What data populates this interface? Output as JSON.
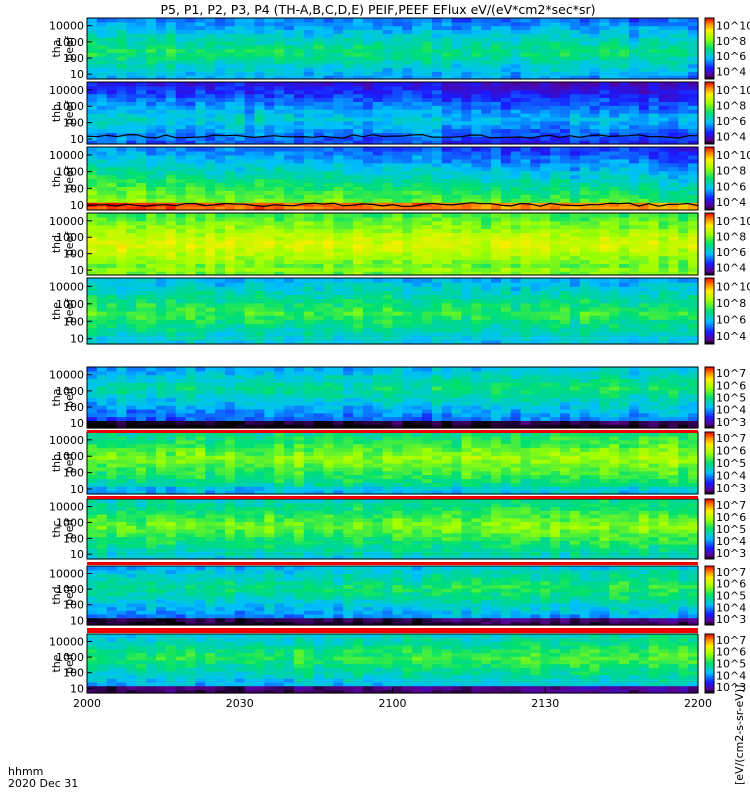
{
  "title": "P5, P1, P2, P3, P4 (TH-A,B,C,D,E) PEIF,PEEF EFlux eV/(eV*cm2*sec*sr)",
  "footer": {
    "time_label": "hhmm",
    "date_label": "2020 Dec 31"
  },
  "colorbar_unit_label": "[eV/(cm2-s-sr-eV)]",
  "colors": {
    "panel_border": "#000000",
    "band_red": "#ee0000",
    "trace": "#000000"
  },
  "chart_data": {
    "type": "heatmap",
    "xlabel": "",
    "x_ticks": [
      "2000",
      "2030",
      "2100",
      "2130",
      "2200"
    ],
    "x_range_hhmm": [
      "2000",
      "2200"
    ],
    "y_scale": "log",
    "y_ticks": [
      "10",
      "100",
      "1000",
      "10000"
    ],
    "y_range_eV": [
      5,
      30000
    ],
    "colormap": "rainbow (purple-blue-cyan-green-yellow-red)",
    "panels": [
      {
        "probe": "tha",
        "product": "peef",
        "label_probe": "tha",
        "label_product": "peef",
        "colorbar_ticks": [
          "10^4",
          "10^6",
          "10^8",
          "10^10"
        ],
        "spectrum": {
          "base": 0.52,
          "peak_log_e": 2.4,
          "hot_level": 0.0,
          "slope": -0.04
        },
        "trace_level": null
      },
      {
        "probe": "thb",
        "product": "peef",
        "label_probe": "thb",
        "label_product": "peef",
        "colorbar_ticks": [
          "10^4",
          "10^6",
          "10^8",
          "10^10"
        ],
        "spectrum": {
          "base": 0.44,
          "peak_log_e": 2.2,
          "hot_level": 0.0,
          "slope": -0.08
        },
        "trace_level": 15
      },
      {
        "probe": "thc",
        "product": "peef",
        "label_probe": "thc",
        "label_product": "peef",
        "colorbar_ticks": [
          "10^4",
          "10^6",
          "10^8",
          "10^10"
        ],
        "spectrum": {
          "base": 0.62,
          "peak_log_e": 1.3,
          "hot_level": 0.35,
          "slope": -0.1
        },
        "trace_level": 11
      },
      {
        "probe": "thd",
        "product": "peef",
        "label_probe": "thd",
        "label_product": "peef",
        "colorbar_ticks": [
          "10^4",
          "10^6",
          "10^8",
          "10^10"
        ],
        "spectrum": {
          "base": 0.72,
          "peak_log_e": 2.6,
          "hot_level": 0.05,
          "slope": -0.03
        },
        "trace_level": null
      },
      {
        "probe": "the",
        "product": "peef",
        "label_probe": "the",
        "label_product": "peef",
        "colorbar_ticks": [
          "10^4",
          "10^6",
          "10^8",
          "10^10"
        ],
        "spectrum": {
          "base": 0.55,
          "peak_log_e": 2.5,
          "hot_level": 0.0,
          "slope": -0.02
        },
        "trace_level": null
      },
      {
        "probe": "tha",
        "product": "peif",
        "label_probe": "tha",
        "label_product": "peif",
        "colorbar_ticks": [
          "10^3",
          "10^4",
          "10^5",
          "10^6",
          "10^7"
        ],
        "spectrum": {
          "base": 0.46,
          "peak_log_e": 3.2,
          "hot_level": 0.0,
          "slope": 0.05
        },
        "trace_level": null
      },
      {
        "probe": "thb",
        "product": "peif",
        "label_probe": "thb",
        "label_product": "peif",
        "colorbar_ticks": [
          "10^3",
          "10^4",
          "10^5",
          "10^6",
          "10^7"
        ],
        "spectrum": {
          "base": 0.6,
          "peak_log_e": 2.9,
          "hot_level": 0.2,
          "slope": 0.04
        },
        "trace_level": null
      },
      {
        "probe": "thc",
        "product": "peif",
        "label_probe": "thc",
        "label_product": "peif",
        "colorbar_ticks": [
          "10^3",
          "10^4",
          "10^5",
          "10^6",
          "10^7"
        ],
        "spectrum": {
          "base": 0.58,
          "peak_log_e": 2.8,
          "hot_level": 0.25,
          "slope": 0.04
        },
        "trace_level": null
      },
      {
        "probe": "thd",
        "product": "peif",
        "label_probe": "thd",
        "label_product": "peif",
        "colorbar_ticks": [
          "10^3",
          "10^4",
          "10^5",
          "10^6",
          "10^7"
        ],
        "spectrum": {
          "base": 0.48,
          "peak_log_e": 3.1,
          "hot_level": 0.0,
          "slope": 0.06
        },
        "trace_level": null
      },
      {
        "probe": "the",
        "product": "peif",
        "label_probe": "the",
        "label_product": "peif",
        "colorbar_ticks": [
          "10^3",
          "10^4",
          "10^5",
          "10^6",
          "10^7"
        ],
        "spectrum": {
          "base": 0.52,
          "peak_log_e": 3.0,
          "hot_level": 0.0,
          "slope": 0.05
        },
        "trace_level": null
      }
    ]
  }
}
